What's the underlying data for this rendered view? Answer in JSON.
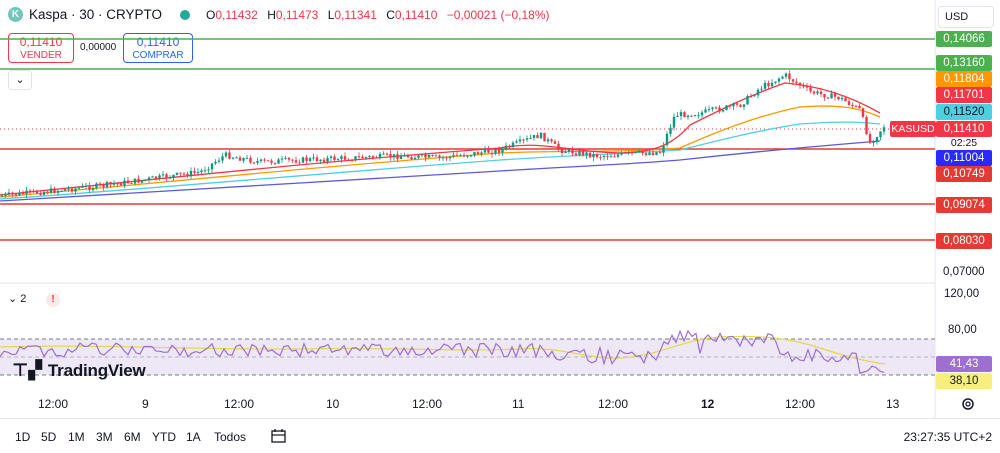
{
  "header": {
    "symbol_icon": "kaspa-logo-icon",
    "symbol_title": "Kaspa · 30 · CRYPTO",
    "market_status_color": "#22ab94",
    "ohlc": {
      "o_key": "O",
      "o_val": "0,11432",
      "h_key": "H",
      "h_val": "0,11473",
      "l_key": "L",
      "l_val": "0,11341",
      "c_key": "C",
      "c_val": "0,11410",
      "change": "−0,00021 (−0,18%)"
    },
    "currency": "USD"
  },
  "trade": {
    "sell_price": "0,11410",
    "sell_label": "VENDER",
    "spread": "0,00000",
    "buy_price": "0,11410",
    "buy_label": "COMPRAR"
  },
  "price_axis": {
    "labels": [
      "0,14066",
      "0,13160",
      "0,11804",
      "0,11701",
      "0,11520",
      "0,11410",
      "0,11004",
      "0,10749",
      "0,09074",
      "0,08030",
      "0,07000"
    ],
    "symbol_tag": "KASUSD",
    "countdown": "02:25"
  },
  "rsi_axis": {
    "labels": [
      "120,00",
      "80,00",
      "41,43",
      "38,10"
    ]
  },
  "time_axis": {
    "labels": [
      "12:00",
      "9",
      "12:00",
      "10",
      "12:00",
      "11",
      "12:00",
      "12",
      "12:00",
      "13"
    ]
  },
  "indicator": {
    "toggle_label": "⌄ 2",
    "warning": "!"
  },
  "branding": {
    "logo_text": "TradingView"
  },
  "toolbar": {
    "timeframes": [
      "1D",
      "5D",
      "1M",
      "3M",
      "6M",
      "YTD",
      "1A",
      "Todos"
    ],
    "clock": "23:27:35 UTC+2"
  },
  "colors": {
    "bull": "#089981",
    "bear": "#f23645",
    "hline_green": "#4caf50",
    "hline_red": "#e53935",
    "ema_red": "#f23645",
    "ema_orange": "#ff9800",
    "ema_cyan": "#4dd0e1",
    "ema_blue": "#5b5bd6",
    "rsi_line": "#9c6fd0",
    "rsi_ma": "#e6d84a",
    "rsi_band": "#ede7f6"
  }
}
